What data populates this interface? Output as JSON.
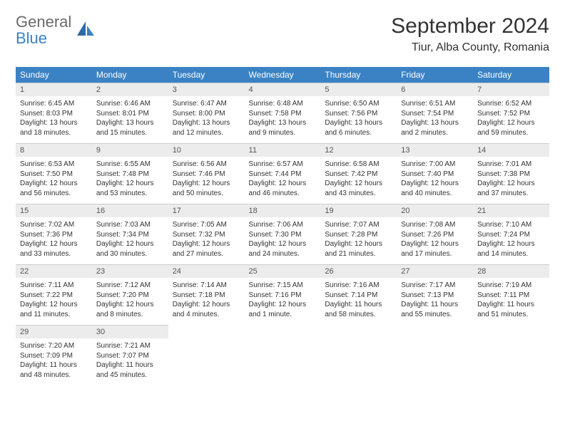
{
  "brand": {
    "word1": "General",
    "word2": "Blue"
  },
  "title": "September 2024",
  "location": "Tiur, Alba County, Romania",
  "colors": {
    "header_bg": "#3b82c4",
    "header_text": "#ffffff",
    "daynum_bg": "#ececec",
    "daynum_text": "#555555",
    "body_text": "#333333",
    "logo_gray": "#6b6b6b",
    "logo_blue": "#3b82c4",
    "page_bg": "#ffffff",
    "rule": "#cccccc"
  },
  "typography": {
    "title_fontsize": 30,
    "location_fontsize": 16,
    "dayheader_fontsize": 12,
    "daynum_fontsize": 11,
    "body_fontsize": 10
  },
  "day_headers": [
    "Sunday",
    "Monday",
    "Tuesday",
    "Wednesday",
    "Thursday",
    "Friday",
    "Saturday"
  ],
  "weeks": [
    [
      {
        "num": "1",
        "sunrise": "Sunrise: 6:45 AM",
        "sunset": "Sunset: 8:03 PM",
        "daylight": "Daylight: 13 hours and 18 minutes."
      },
      {
        "num": "2",
        "sunrise": "Sunrise: 6:46 AM",
        "sunset": "Sunset: 8:01 PM",
        "daylight": "Daylight: 13 hours and 15 minutes."
      },
      {
        "num": "3",
        "sunrise": "Sunrise: 6:47 AM",
        "sunset": "Sunset: 8:00 PM",
        "daylight": "Daylight: 13 hours and 12 minutes."
      },
      {
        "num": "4",
        "sunrise": "Sunrise: 6:48 AM",
        "sunset": "Sunset: 7:58 PM",
        "daylight": "Daylight: 13 hours and 9 minutes."
      },
      {
        "num": "5",
        "sunrise": "Sunrise: 6:50 AM",
        "sunset": "Sunset: 7:56 PM",
        "daylight": "Daylight: 13 hours and 6 minutes."
      },
      {
        "num": "6",
        "sunrise": "Sunrise: 6:51 AM",
        "sunset": "Sunset: 7:54 PM",
        "daylight": "Daylight: 13 hours and 2 minutes."
      },
      {
        "num": "7",
        "sunrise": "Sunrise: 6:52 AM",
        "sunset": "Sunset: 7:52 PM",
        "daylight": "Daylight: 12 hours and 59 minutes."
      }
    ],
    [
      {
        "num": "8",
        "sunrise": "Sunrise: 6:53 AM",
        "sunset": "Sunset: 7:50 PM",
        "daylight": "Daylight: 12 hours and 56 minutes."
      },
      {
        "num": "9",
        "sunrise": "Sunrise: 6:55 AM",
        "sunset": "Sunset: 7:48 PM",
        "daylight": "Daylight: 12 hours and 53 minutes."
      },
      {
        "num": "10",
        "sunrise": "Sunrise: 6:56 AM",
        "sunset": "Sunset: 7:46 PM",
        "daylight": "Daylight: 12 hours and 50 minutes."
      },
      {
        "num": "11",
        "sunrise": "Sunrise: 6:57 AM",
        "sunset": "Sunset: 7:44 PM",
        "daylight": "Daylight: 12 hours and 46 minutes."
      },
      {
        "num": "12",
        "sunrise": "Sunrise: 6:58 AM",
        "sunset": "Sunset: 7:42 PM",
        "daylight": "Daylight: 12 hours and 43 minutes."
      },
      {
        "num": "13",
        "sunrise": "Sunrise: 7:00 AM",
        "sunset": "Sunset: 7:40 PM",
        "daylight": "Daylight: 12 hours and 40 minutes."
      },
      {
        "num": "14",
        "sunrise": "Sunrise: 7:01 AM",
        "sunset": "Sunset: 7:38 PM",
        "daylight": "Daylight: 12 hours and 37 minutes."
      }
    ],
    [
      {
        "num": "15",
        "sunrise": "Sunrise: 7:02 AM",
        "sunset": "Sunset: 7:36 PM",
        "daylight": "Daylight: 12 hours and 33 minutes."
      },
      {
        "num": "16",
        "sunrise": "Sunrise: 7:03 AM",
        "sunset": "Sunset: 7:34 PM",
        "daylight": "Daylight: 12 hours and 30 minutes."
      },
      {
        "num": "17",
        "sunrise": "Sunrise: 7:05 AM",
        "sunset": "Sunset: 7:32 PM",
        "daylight": "Daylight: 12 hours and 27 minutes."
      },
      {
        "num": "18",
        "sunrise": "Sunrise: 7:06 AM",
        "sunset": "Sunset: 7:30 PM",
        "daylight": "Daylight: 12 hours and 24 minutes."
      },
      {
        "num": "19",
        "sunrise": "Sunrise: 7:07 AM",
        "sunset": "Sunset: 7:28 PM",
        "daylight": "Daylight: 12 hours and 21 minutes."
      },
      {
        "num": "20",
        "sunrise": "Sunrise: 7:08 AM",
        "sunset": "Sunset: 7:26 PM",
        "daylight": "Daylight: 12 hours and 17 minutes."
      },
      {
        "num": "21",
        "sunrise": "Sunrise: 7:10 AM",
        "sunset": "Sunset: 7:24 PM",
        "daylight": "Daylight: 12 hours and 14 minutes."
      }
    ],
    [
      {
        "num": "22",
        "sunrise": "Sunrise: 7:11 AM",
        "sunset": "Sunset: 7:22 PM",
        "daylight": "Daylight: 12 hours and 11 minutes."
      },
      {
        "num": "23",
        "sunrise": "Sunrise: 7:12 AM",
        "sunset": "Sunset: 7:20 PM",
        "daylight": "Daylight: 12 hours and 8 minutes."
      },
      {
        "num": "24",
        "sunrise": "Sunrise: 7:14 AM",
        "sunset": "Sunset: 7:18 PM",
        "daylight": "Daylight: 12 hours and 4 minutes."
      },
      {
        "num": "25",
        "sunrise": "Sunrise: 7:15 AM",
        "sunset": "Sunset: 7:16 PM",
        "daylight": "Daylight: 12 hours and 1 minute."
      },
      {
        "num": "26",
        "sunrise": "Sunrise: 7:16 AM",
        "sunset": "Sunset: 7:14 PM",
        "daylight": "Daylight: 11 hours and 58 minutes."
      },
      {
        "num": "27",
        "sunrise": "Sunrise: 7:17 AM",
        "sunset": "Sunset: 7:13 PM",
        "daylight": "Daylight: 11 hours and 55 minutes."
      },
      {
        "num": "28",
        "sunrise": "Sunrise: 7:19 AM",
        "sunset": "Sunset: 7:11 PM",
        "daylight": "Daylight: 11 hours and 51 minutes."
      }
    ],
    [
      {
        "num": "29",
        "sunrise": "Sunrise: 7:20 AM",
        "sunset": "Sunset: 7:09 PM",
        "daylight": "Daylight: 11 hours and 48 minutes."
      },
      {
        "num": "30",
        "sunrise": "Sunrise: 7:21 AM",
        "sunset": "Sunset: 7:07 PM",
        "daylight": "Daylight: 11 hours and 45 minutes."
      },
      null,
      null,
      null,
      null,
      null
    ]
  ]
}
